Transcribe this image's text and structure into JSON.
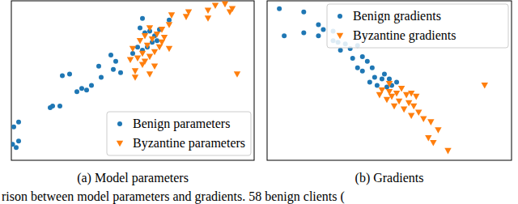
{
  "chart_data": [
    {
      "type": "scatter",
      "title": "(a) Model parameters",
      "xlim": [
        0,
        100
      ],
      "ylim": [
        0,
        100
      ],
      "tick_labels": false,
      "legend": "lower right",
      "series": [
        {
          "name": "Benign parameters",
          "color": "#1f77b4",
          "marker": "circle",
          "x": [
            2,
            0.5,
            3,
            1,
            3,
            16,
            17,
            20,
            27,
            29,
            31,
            33,
            21,
            24,
            37,
            42,
            45,
            36,
            43,
            41,
            50,
            54,
            52,
            56,
            58,
            60,
            59,
            55,
            57,
            53,
            61,
            54,
            65
          ],
          "values": [
            8,
            10,
            12,
            21,
            24,
            33,
            34,
            34,
            43,
            45,
            44,
            47,
            53,
            54,
            52,
            57,
            55,
            59,
            62,
            66,
            67,
            69,
            71,
            71,
            74,
            75,
            78,
            80,
            81,
            83,
            82,
            89,
            88
          ]
        },
        {
          "name": "Byzantine parameters",
          "color": "#ff7f0e",
          "marker": "triangle_down",
          "x": [
            51,
            54,
            49,
            52,
            55,
            57,
            54,
            59,
            50,
            56,
            61,
            53,
            58,
            62,
            55,
            60,
            63,
            62,
            57,
            65,
            65,
            59,
            57,
            51,
            66,
            72,
            73,
            81,
            84,
            81,
            88,
            90,
            91,
            93
          ],
          "values": [
            56,
            60,
            63,
            64,
            62,
            65,
            67,
            68,
            70,
            72,
            71,
            75,
            76,
            74,
            78,
            79,
            77,
            82,
            83,
            85,
            70,
            59,
            54,
            52,
            91,
            90,
            93,
            94,
            97,
            89,
            98,
            93,
            95,
            54
          ]
        }
      ]
    },
    {
      "type": "scatter",
      "title": "(b) Gradients",
      "xlim": [
        0,
        100
      ],
      "ylim": [
        0,
        100
      ],
      "tick_labels": false,
      "legend": "upper right",
      "series": [
        {
          "name": "Benign gradients",
          "color": "#1f77b4",
          "marker": "circle",
          "x": [
            5,
            15,
            7,
            15,
            21,
            23,
            27,
            21,
            27,
            29,
            32,
            30,
            34,
            37,
            35,
            39,
            41,
            43,
            37,
            39,
            44,
            47,
            48,
            50,
            45,
            49,
            51,
            53,
            42
          ],
          "values": [
            95,
            93,
            78,
            80,
            78,
            82,
            81,
            85,
            75,
            74,
            73,
            69,
            70,
            72,
            64,
            65,
            62,
            58,
            58,
            56,
            52,
            51,
            54,
            51,
            47,
            46,
            47,
            49,
            49
          ]
        },
        {
          "name": "Byzantine gradients",
          "color": "#ff7f0e",
          "marker": "triangle_down",
          "x": [
            47,
            50,
            53,
            51,
            55,
            57,
            49,
            54,
            58,
            52,
            56,
            60,
            62,
            59,
            64,
            50,
            46,
            61,
            67,
            70,
            66,
            68,
            74,
            89,
            59
          ],
          "values": [
            44,
            43,
            42,
            40,
            45,
            41,
            38,
            37,
            36,
            34,
            32,
            34,
            30,
            28,
            26,
            48,
            41,
            40,
            24,
            19,
            14,
            11,
            6,
            47,
            42
          ]
        }
      ]
    }
  ],
  "caption": "rison between model parameters and gradients. 58 benign clients ("
}
